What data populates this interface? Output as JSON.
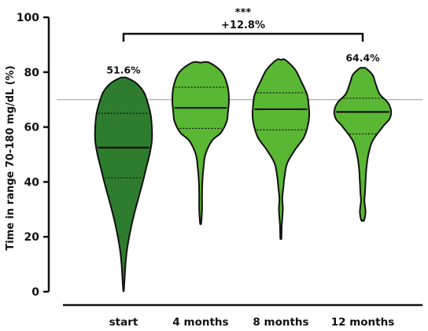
{
  "chart_data": {
    "type": "violin",
    "title": "",
    "xlabel": "",
    "ylabel": "Time in range 70-180 mg/dL (%)",
    "ylim": [
      0,
      100
    ],
    "yticks": [
      0,
      20,
      40,
      60,
      80,
      100
    ],
    "reference_line": 70,
    "grid": false,
    "categories": [
      "start",
      "4 months",
      "8 months",
      "12 months"
    ],
    "colors": [
      "#2e7d2e",
      "#5ab733",
      "#5ab733",
      "#5ab733"
    ],
    "outline_color": "#111111",
    "violins": [
      {
        "category": "start",
        "min": 0.5,
        "max": 78,
        "q1": 41.5,
        "median": 52.5,
        "q3": 65,
        "profile": [
          [
            0.5,
            0.01
          ],
          [
            5,
            0.04
          ],
          [
            10,
            0.07
          ],
          [
            15,
            0.12
          ],
          [
            20,
            0.2
          ],
          [
            25,
            0.3
          ],
          [
            30,
            0.42
          ],
          [
            35,
            0.55
          ],
          [
            40,
            0.68
          ],
          [
            45,
            0.8
          ],
          [
            50,
            0.92
          ],
          [
            55,
            1.0
          ],
          [
            60,
            1.0
          ],
          [
            65,
            0.95
          ],
          [
            70,
            0.82
          ],
          [
            73,
            0.7
          ],
          [
            76,
            0.45
          ],
          [
            78,
            0.1
          ]
        ]
      },
      {
        "category": "4 months",
        "min": 25,
        "max": 83.5,
        "q1": 59.5,
        "median": 67,
        "q3": 74.5,
        "profile": [
          [
            25,
            0.02
          ],
          [
            30,
            0.05
          ],
          [
            35,
            0.05
          ],
          [
            40,
            0.06
          ],
          [
            45,
            0.1
          ],
          [
            50,
            0.17
          ],
          [
            55,
            0.4
          ],
          [
            58,
            0.72
          ],
          [
            62,
            0.92
          ],
          [
            65,
            0.96
          ],
          [
            70,
            1.0
          ],
          [
            75,
            0.95
          ],
          [
            80,
            0.75
          ],
          [
            83.5,
            0.3
          ]
        ]
      },
      {
        "category": "8 months",
        "min": 19.5,
        "max": 84.5,
        "q1": 59,
        "median": 66.5,
        "q3": 72.5,
        "profile": [
          [
            19.5,
            0.02
          ],
          [
            24,
            0.03
          ],
          [
            30,
            0.07
          ],
          [
            34,
            0.05
          ],
          [
            38,
            0.09
          ],
          [
            42,
            0.13
          ],
          [
            47,
            0.23
          ],
          [
            52,
            0.52
          ],
          [
            56,
            0.8
          ],
          [
            60,
            0.94
          ],
          [
            64,
            1.0
          ],
          [
            68,
            0.98
          ],
          [
            72,
            0.92
          ],
          [
            77,
            0.7
          ],
          [
            81,
            0.5
          ],
          [
            84.5,
            0.15
          ]
        ]
      },
      {
        "category": "12 months",
        "min": 26,
        "max": 81.5,
        "q1": 57.5,
        "median": 65.5,
        "q3": 70.5,
        "profile": [
          [
            26,
            0.05
          ],
          [
            29,
            0.1
          ],
          [
            33,
            0.06
          ],
          [
            36,
            0.08
          ],
          [
            40,
            0.1
          ],
          [
            45,
            0.13
          ],
          [
            50,
            0.2
          ],
          [
            55,
            0.35
          ],
          [
            60,
            0.7
          ],
          [
            63,
            0.95
          ],
          [
            66,
            1.0
          ],
          [
            69,
            0.88
          ],
          [
            72,
            0.6
          ],
          [
            76,
            0.45
          ],
          [
            79,
            0.35
          ],
          [
            81.5,
            0.1
          ]
        ]
      }
    ],
    "annotations": [
      {
        "category": "start",
        "text": "51.6%",
        "y": 79.5
      },
      {
        "category": "12 months",
        "text": "64.4%",
        "y": 84
      }
    ],
    "significance": {
      "from": "start",
      "to": "12 months",
      "y": 94,
      "stars": "***",
      "label": "+12.8%"
    }
  }
}
